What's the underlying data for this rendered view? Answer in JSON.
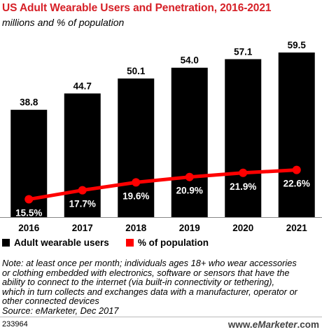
{
  "title": "US Adult Wearable Users and Penetration, 2016-2021",
  "subtitle": "millions and % of population",
  "legend": {
    "users": "Adult wearable users",
    "penetration": "% of population"
  },
  "note_lines": [
    "Note: at least once per month; individuals ages 18+ who wear accessories",
    "or clothing embedded with electronics, software or sensors that have the",
    "ability to connect to the internet (via built-in connectivity or tethering),",
    "which in turn collects and exchanges data with a manufacturer, operator or",
    "other connected devices"
  ],
  "source": "Source: eMarketer, Dec 2017",
  "chart_id": "233964",
  "brand": {
    "prefix": "www.",
    "name": "eMarketer",
    "suffix": ".com"
  },
  "colors": {
    "bars": "#000000",
    "line": "#ff0000",
    "title": "#d62027"
  },
  "chart_data": {
    "type": "bar",
    "categories": [
      "2016",
      "2017",
      "2018",
      "2019",
      "2020",
      "2021"
    ],
    "series": [
      {
        "name": "Adult wearable users",
        "type": "bar",
        "values": [
          38.8,
          44.7,
          50.1,
          54.0,
          57.1,
          59.5
        ],
        "labels": [
          "38.8",
          "44.7",
          "50.1",
          "54.0",
          "57.1",
          "59.5"
        ]
      },
      {
        "name": "% of population",
        "type": "line",
        "values": [
          15.5,
          17.7,
          19.6,
          20.9,
          21.9,
          22.6
        ],
        "labels": [
          "15.5%",
          "17.7%",
          "19.6%",
          "20.9%",
          "21.9%",
          "22.6%"
        ]
      }
    ],
    "grid": false,
    "legend_position": "bottom-left"
  }
}
